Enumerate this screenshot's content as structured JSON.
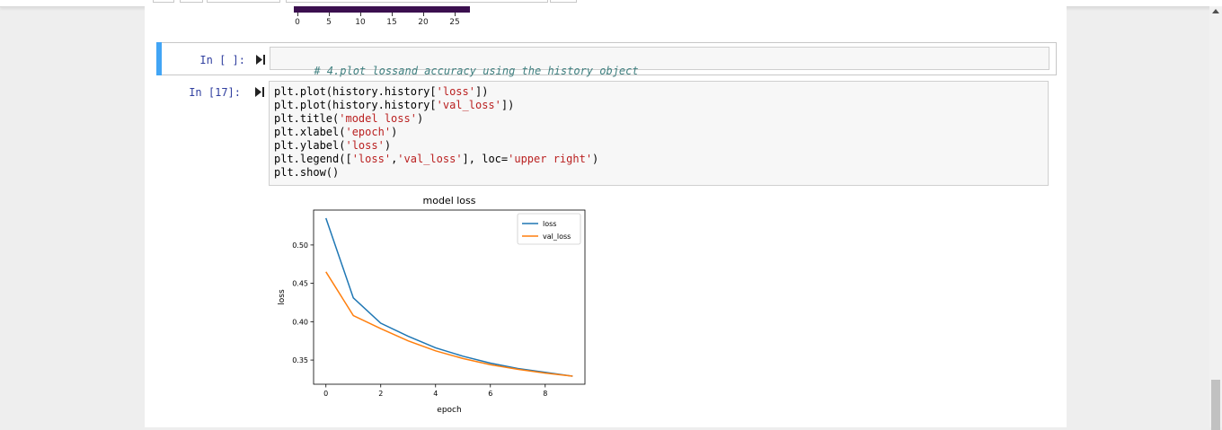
{
  "colors": {
    "prompt": "#303f9f",
    "selected_cell_bar": "#42a5f5",
    "loss_line": "#1f77b4",
    "val_loss_line": "#ff7f0e",
    "prev_colorbar": "#3b0f4f"
  },
  "prev_output": {
    "ticks": [
      "0",
      "5",
      "10",
      "15",
      "20",
      "25"
    ]
  },
  "cells": {
    "markdown_like": {
      "prompt": "In [ ]:",
      "code": "# 4.plot lossand accuracy using the history object"
    },
    "plot_cell": {
      "prompt": "In [17]:",
      "lines": [
        "plt.plot(history.history['loss'])",
        "plt.plot(history.history['val_loss'])",
        "plt.title('model loss')",
        "plt.xlabel('epoch')",
        "plt.ylabel('loss')",
        "plt.legend(['loss','val_loss'], loc='upper right')",
        "plt.show()"
      ]
    }
  },
  "icons": {
    "run": "run-cell-icon"
  },
  "chart_data": {
    "type": "line",
    "title": "model loss",
    "xlabel": "epoch",
    "ylabel": "loss",
    "x": [
      0,
      1,
      2,
      3,
      4,
      5,
      6,
      7,
      8,
      9
    ],
    "series": [
      {
        "name": "loss",
        "values": [
          0.535,
          0.431,
          0.398,
          0.381,
          0.366,
          0.355,
          0.346,
          0.339,
          0.334,
          0.329
        ]
      },
      {
        "name": "val_loss",
        "values": [
          0.465,
          0.408,
          0.391,
          0.375,
          0.362,
          0.352,
          0.344,
          0.338,
          0.333,
          0.329
        ]
      }
    ],
    "xticks": [
      "0",
      "2",
      "4",
      "6",
      "8"
    ],
    "yticks": [
      "0.35",
      "0.40",
      "0.45",
      "0.50"
    ],
    "xlim": [
      -0.45,
      9.45
    ],
    "ylim": [
      0.3185,
      0.5455
    ],
    "legend_loc": "upper right",
    "grid": false
  }
}
